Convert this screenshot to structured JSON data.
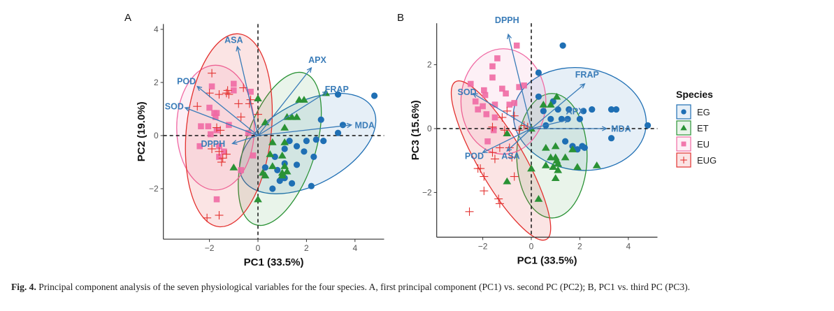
{
  "caption": {
    "label": "Fig. 4.",
    "text": " Principal component analysis of the seven physiological variables for the four species. A, first principal component (PC1) vs. second PC (PC2); B, PC1 vs. third PC (PC3)."
  },
  "legend": {
    "title": "Species",
    "placement": "right",
    "entries": [
      {
        "name": "EG",
        "shape": "circle",
        "color": "#1f6fb4"
      },
      {
        "name": "ET",
        "shape": "triangle",
        "color": "#2a9235"
      },
      {
        "name": "EU",
        "shape": "square",
        "color": "#f06aa4"
      },
      {
        "name": "EUG",
        "shape": "cross",
        "color": "#e3312f"
      }
    ]
  },
  "chart_data": [
    {
      "panel": "A",
      "type": "scatter",
      "title": "",
      "xlabel": "PC1 (33.5%)",
      "ylabel": "PC2 (19.0%)",
      "xlim": [
        -3.9,
        5.2
      ],
      "ylim": [
        -3.9,
        4.2
      ],
      "xticks": [
        -2,
        0,
        2,
        4
      ],
      "yticks": [
        -2,
        0,
        2,
        4
      ],
      "xtick_labels": [
        "−2",
        "0",
        "2",
        "4"
      ],
      "ytick_labels": [
        "−2",
        "0",
        "2",
        "4"
      ],
      "grid": false,
      "reference_lines": {
        "x": 0,
        "y": 0,
        "style": "dashed"
      },
      "loadings": [
        {
          "name": "ASA",
          "x": -0.85,
          "y": 3.35,
          "label_x": -1.0,
          "label_y": 3.6
        },
        {
          "name": "APX",
          "x": 2.2,
          "y": 2.55,
          "label_x": 2.45,
          "label_y": 2.85
        },
        {
          "name": "FRAP",
          "x": 2.85,
          "y": 1.65,
          "label_x": 3.25,
          "label_y": 1.75
        },
        {
          "name": "MDA",
          "x": 3.85,
          "y": 0.4,
          "label_x": 4.4,
          "label_y": 0.4
        },
        {
          "name": "POD",
          "x": -2.5,
          "y": 1.85,
          "label_x": -2.95,
          "label_y": 2.05
        },
        {
          "name": "SOD",
          "x": -3.0,
          "y": 1.05,
          "label_x": -3.45,
          "label_y": 1.1
        },
        {
          "name": "DPPH",
          "x": -1.05,
          "y": -0.3,
          "label_x": -1.85,
          "label_y": -0.3
        }
      ],
      "series": [
        {
          "name": "EG",
          "points": [
            [
              3.3,
              1.55
            ],
            [
              4.8,
              1.5
            ],
            [
              3.5,
              0.4
            ],
            [
              3.3,
              0.1
            ],
            [
              2.6,
              0.6
            ],
            [
              2.0,
              -0.2
            ],
            [
              2.4,
              -0.15
            ],
            [
              2.7,
              -0.2
            ],
            [
              1.3,
              -0.2
            ],
            [
              1.6,
              -0.4
            ],
            [
              1.9,
              -0.6
            ],
            [
              0.7,
              -0.8
            ],
            [
              1.1,
              -0.5
            ],
            [
              2.3,
              -0.8
            ],
            [
              1.6,
              -1.1
            ],
            [
              1.1,
              -1.6
            ],
            [
              0.3,
              -1.2
            ],
            [
              0.8,
              -1.3
            ],
            [
              1.4,
              -1.8
            ],
            [
              0.6,
              -2.0
            ],
            [
              2.2,
              -1.9
            ],
            [
              0.9,
              -1.7
            ],
            [
              1.1,
              -1.05
            ]
          ],
          "ellipse": {
            "cx": 2.05,
            "cy": -0.3,
            "rx": 3.05,
            "ry": 1.55,
            "angle_deg": 28
          }
        },
        {
          "name": "ET",
          "points": [
            [
              2.8,
              1.6
            ],
            [
              1.7,
              1.35
            ],
            [
              1.9,
              1.35
            ],
            [
              1.2,
              0.7
            ],
            [
              1.4,
              0.7
            ],
            [
              1.6,
              0.7
            ],
            [
              0.3,
              0.5
            ],
            [
              1.1,
              0.3
            ],
            [
              0.6,
              -0.25
            ],
            [
              1.1,
              -0.25
            ],
            [
              0.5,
              -0.7
            ],
            [
              1.0,
              -0.75
            ],
            [
              0.6,
              -1.15
            ],
            [
              1.1,
              -1.15
            ],
            [
              1.0,
              -1.4
            ],
            [
              1.2,
              -1.35
            ],
            [
              1.0,
              -1.5
            ],
            [
              -1.0,
              -1.2
            ],
            [
              0.2,
              -1.4
            ],
            [
              0.3,
              -1.5
            ],
            [
              0.0,
              -2.4
            ],
            [
              0.0,
              1.4
            ]
          ],
          "ellipse": {
            "cx": 0.9,
            "cy": -0.5,
            "rx": 1.45,
            "ry": 3.0,
            "angle_deg": -18
          }
        },
        {
          "name": "EU",
          "points": [
            [
              -1.9,
              1.85
            ],
            [
              -1.0,
              1.95
            ],
            [
              -1.0,
              1.7
            ],
            [
              -0.3,
              1.65
            ],
            [
              -2.0,
              1.05
            ],
            [
              -1.8,
              0.85
            ],
            [
              -1.7,
              0.85
            ],
            [
              -1.75,
              0.7
            ],
            [
              -2.35,
              0.35
            ],
            [
              -2.05,
              0.35
            ],
            [
              -1.95,
              0.05
            ],
            [
              -1.7,
              0.2
            ],
            [
              -1.2,
              0.4
            ],
            [
              -2.4,
              -0.4
            ],
            [
              -1.6,
              -0.4
            ],
            [
              -1.6,
              -0.8
            ],
            [
              -1.4,
              -0.6
            ],
            [
              -0.7,
              -1.3
            ],
            [
              -0.2,
              -0.75
            ],
            [
              -1.7,
              -2.4
            ],
            [
              -0.4,
              0.1
            ]
          ],
          "ellipse": {
            "cx": -1.75,
            "cy": 0.3,
            "rx": 1.6,
            "ry": 2.35,
            "angle_deg": 0
          }
        },
        {
          "name": "EUG",
          "points": [
            [
              -1.9,
              2.35
            ],
            [
              -2.0,
              1.6
            ],
            [
              -1.6,
              1.55
            ],
            [
              -1.2,
              1.55
            ],
            [
              -1.25,
              1.7
            ],
            [
              -1.3,
              1.6
            ],
            [
              -0.6,
              1.8
            ],
            [
              -0.8,
              1.2
            ],
            [
              -0.3,
              1.35
            ],
            [
              -0.35,
              1.2
            ],
            [
              -2.5,
              1.1
            ],
            [
              -1.7,
              0.3
            ],
            [
              -1.55,
              0.2
            ],
            [
              -1.9,
              -0.5
            ],
            [
              -1.6,
              -0.6
            ],
            [
              -1.3,
              -0.7
            ],
            [
              -1.45,
              -0.85
            ],
            [
              -2.1,
              -3.1
            ],
            [
              -1.6,
              -3.0
            ],
            [
              -0.7,
              0.7
            ],
            [
              0.0,
              0.8
            ],
            [
              -1.5,
              -1.0
            ]
          ],
          "ellipse": {
            "cx": -1.2,
            "cy": 0.2,
            "rx": 1.75,
            "ry": 3.65,
            "angle_deg": -6
          }
        }
      ]
    },
    {
      "panel": "B",
      "type": "scatter",
      "title": "",
      "xlabel": "PC1 (33.5%)",
      "ylabel": "PC3 (15.6%)",
      "xlim": [
        -3.9,
        5.2
      ],
      "ylim": [
        -3.4,
        3.3
      ],
      "xticks": [
        -2,
        0,
        2,
        4
      ],
      "yticks": [
        -2,
        0,
        2
      ],
      "xtick_labels": [
        "−2",
        "0",
        "2",
        "4"
      ],
      "ytick_labels": [
        "−2",
        "0",
        "2"
      ],
      "grid": false,
      "reference_lines": {
        "x": 0,
        "y": 0,
        "style": "dashed"
      },
      "loadings": [
        {
          "name": "DPPH",
          "x": -0.95,
          "y": 2.95,
          "label_x": -1.0,
          "label_y": 3.4
        },
        {
          "name": "FRAP",
          "x": 2.2,
          "y": 1.4,
          "label_x": 2.3,
          "label_y": 1.7
        },
        {
          "name": "SOD",
          "x": -2.4,
          "y": 1.1,
          "label_x": -2.65,
          "label_y": 1.15
        },
        {
          "name": "APX",
          "x": 1.55,
          "y": 0.28,
          "label_x": 1.8,
          "label_y": 0.55
        },
        {
          "name": "MDA",
          "x": 3.1,
          "y": 0.0,
          "label_x": 3.7,
          "label_y": 0.0
        },
        {
          "name": "POD",
          "x": -2.0,
          "y": -0.75,
          "label_x": -2.35,
          "label_y": -0.85
        },
        {
          "name": "ASA",
          "x": -1.0,
          "y": -0.7,
          "label_x": -0.85,
          "label_y": -0.85
        }
      ],
      "series": [
        {
          "name": "EG",
          "points": [
            [
              1.3,
              2.6
            ],
            [
              0.3,
              1.75
            ],
            [
              0.3,
              1.0
            ],
            [
              0.9,
              0.85
            ],
            [
              1.1,
              0.6
            ],
            [
              1.55,
              0.6
            ],
            [
              2.5,
              0.6
            ],
            [
              3.3,
              0.6
            ],
            [
              3.5,
              0.6
            ],
            [
              1.5,
              0.3
            ],
            [
              2.0,
              0.3
            ],
            [
              2.15,
              0.55
            ],
            [
              0.5,
              0.55
            ],
            [
              1.25,
              0.3
            ],
            [
              0.6,
              0.1
            ],
            [
              4.8,
              0.1
            ],
            [
              3.3,
              -0.3
            ],
            [
              1.4,
              -0.4
            ],
            [
              1.7,
              -0.55
            ],
            [
              2.1,
              -0.55
            ],
            [
              2.2,
              -0.6
            ],
            [
              1.9,
              -0.65
            ],
            [
              0.8,
              0.3
            ]
          ],
          "ellipse": {
            "cx": 2.0,
            "cy": 0.3,
            "rx": 2.75,
            "ry": 1.6,
            "angle_deg": -8
          }
        },
        {
          "name": "ET",
          "points": [
            [
              1.05,
              1.0
            ],
            [
              0.8,
              0.75
            ],
            [
              0.5,
              0.75
            ],
            [
              0.0,
              0.0
            ],
            [
              -1.0,
              -0.15
            ],
            [
              1.0,
              -0.55
            ],
            [
              1.7,
              -0.65
            ],
            [
              0.6,
              -0.6
            ],
            [
              0.8,
              -0.9
            ],
            [
              1.0,
              -0.9
            ],
            [
              1.4,
              -0.9
            ],
            [
              1.05,
              -1.0
            ],
            [
              0.6,
              -1.15
            ],
            [
              0.9,
              -1.2
            ],
            [
              2.7,
              -1.15
            ],
            [
              1.9,
              -1.2
            ],
            [
              0.0,
              -1.25
            ],
            [
              1.1,
              -1.3
            ],
            [
              1.0,
              -1.55
            ],
            [
              -1.0,
              -1.65
            ],
            [
              0.3,
              -2.2
            ],
            [
              1.1,
              -1.1
            ]
          ],
          "ellipse": {
            "cx": 0.85,
            "cy": -0.85,
            "rx": 1.45,
            "ry": 1.95,
            "angle_deg": 0
          }
        },
        {
          "name": "EU",
          "points": [
            [
              -0.6,
              2.6
            ],
            [
              -1.4,
              2.2
            ],
            [
              -1.6,
              1.95
            ],
            [
              -1.6,
              1.6
            ],
            [
              -2.5,
              1.4
            ],
            [
              -1.95,
              1.2
            ],
            [
              -1.2,
              1.25
            ],
            [
              -1.9,
              1.05
            ],
            [
              -1.05,
              1.1
            ],
            [
              -0.3,
              1.35
            ],
            [
              -0.5,
              1.3
            ],
            [
              -2.3,
              0.85
            ],
            [
              -2.0,
              0.7
            ],
            [
              -2.2,
              0.6
            ],
            [
              -1.5,
              0.75
            ],
            [
              -0.7,
              0.8
            ],
            [
              -0.9,
              0.75
            ],
            [
              -1.85,
              0.45
            ],
            [
              -1.5,
              0.35
            ],
            [
              -1.55,
              -0.05
            ],
            [
              -1.8,
              -0.4
            ]
          ],
          "ellipse": {
            "cx": -1.15,
            "cy": 0.85,
            "rx": 1.75,
            "ry": 1.65,
            "angle_deg": 0
          }
        },
        {
          "name": "EUG",
          "points": [
            [
              -0.7,
              0.4
            ],
            [
              -1.0,
              0.55
            ],
            [
              -1.2,
              0.35
            ],
            [
              -1.6,
              0.05
            ],
            [
              -1.1,
              -0.05
            ],
            [
              -0.5,
              -0.05
            ],
            [
              -0.3,
              0.1
            ],
            [
              -0.15,
              0.05
            ],
            [
              -0.9,
              -0.6
            ],
            [
              -1.3,
              -0.6
            ],
            [
              -0.8,
              -0.9
            ],
            [
              -1.5,
              -0.95
            ],
            [
              -2.2,
              -1.25
            ],
            [
              -2.1,
              -1.25
            ],
            [
              -1.95,
              -1.5
            ],
            [
              -0.7,
              -1.5
            ],
            [
              -1.95,
              -1.95
            ],
            [
              -1.35,
              -2.2
            ],
            [
              -1.3,
              -2.35
            ],
            [
              -2.55,
              -2.6
            ],
            [
              -1.6,
              -0.75
            ]
          ],
          "ellipse": {
            "cx": -1.25,
            "cy": -1.0,
            "rx": 0.95,
            "ry": 2.85,
            "angle_deg": 30
          }
        }
      ]
    }
  ]
}
